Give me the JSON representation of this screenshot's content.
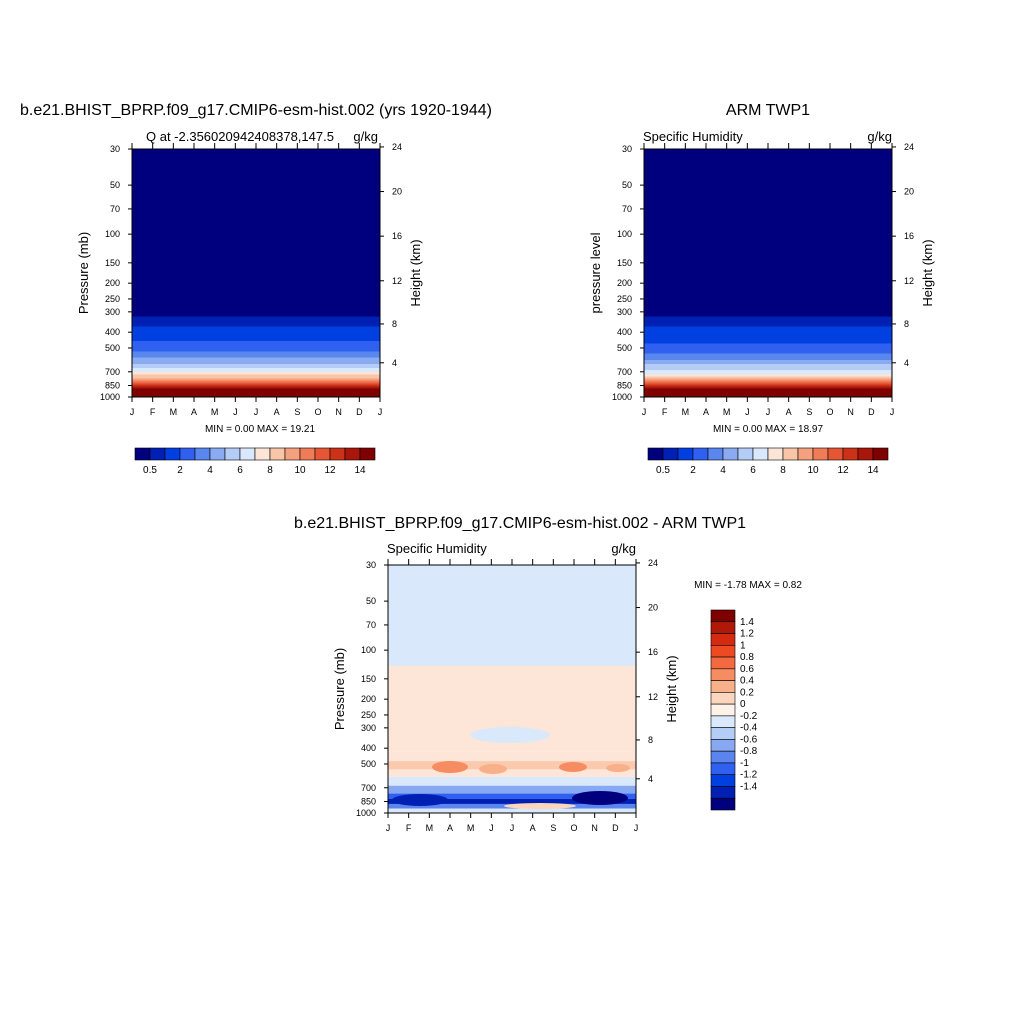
{
  "chart_data": [
    {
      "type": "heatmap",
      "title": "b.e21.BHIST_BPRP.f09_g17.CMIP6-esm-hist.002 (yrs 1920-1944)",
      "subtitle_left": "Q at -2.356020942408378,147.5",
      "subtitle_right": "g/kg",
      "ylabel": "Pressure (mb)",
      "ylabel_right": "Height (km)",
      "x_ticks": [
        "J",
        "F",
        "M",
        "A",
        "M",
        "J",
        "J",
        "A",
        "S",
        "O",
        "N",
        "D",
        "J"
      ],
      "y_ticks": [
        30,
        50,
        70,
        100,
        150,
        200,
        250,
        300,
        400,
        500,
        700,
        850,
        1000
      ],
      "y_ticks_right": [
        24,
        20,
        16,
        12,
        8,
        4
      ],
      "ylim": [
        30,
        1000
      ],
      "y_scale": "log",
      "minmax_text": "MIN =   0.00 MAX =  19.21",
      "colorbar": {
        "orientation": "horizontal",
        "labels": [
          "0.5",
          "2",
          "4",
          "6",
          "8",
          "10",
          "12",
          "14"
        ],
        "colors": [
          "#00007f",
          "#0020b4",
          "#0040e0",
          "#3060f0",
          "#5a87ee",
          "#8aaaf2",
          "#b4cdf7",
          "#d9e8fb",
          "#fbe5d6",
          "#f8c5a8",
          "#f5a07e",
          "#f07c57",
          "#e65635",
          "#cc3218",
          "#a8160c",
          "#7f0000"
        ]
      },
      "profile": [
        {
          "p": 30,
          "q": 0.0
        },
        {
          "p": 280,
          "q": 0.05
        },
        {
          "p": 300,
          "q": 0.4
        },
        {
          "p": 400,
          "q": 1.3
        },
        {
          "p": 500,
          "q": 2.6
        },
        {
          "p": 600,
          "q": 4.5
        },
        {
          "p": 700,
          "q": 7.0
        },
        {
          "p": 775,
          "q": 10.0
        },
        {
          "p": 850,
          "q": 13.0
        },
        {
          "p": 925,
          "q": 16.0
        },
        {
          "p": 1000,
          "q": 19.2
        }
      ]
    },
    {
      "type": "heatmap",
      "title": "ARM TWP1",
      "subtitle_left": "Specific Humidity",
      "subtitle_right": "g/kg",
      "ylabel": "pressure level",
      "ylabel_right": "Height (km)",
      "x_ticks": [
        "J",
        "F",
        "M",
        "A",
        "M",
        "J",
        "J",
        "A",
        "S",
        "O",
        "N",
        "D",
        "J"
      ],
      "y_ticks": [
        30,
        50,
        70,
        100,
        150,
        200,
        250,
        300,
        400,
        500,
        700,
        850,
        1000
      ],
      "y_ticks_right": [
        24,
        20,
        16,
        12,
        8,
        4
      ],
      "ylim": [
        30,
        1000
      ],
      "y_scale": "log",
      "minmax_text": "MIN =   0.00 MAX =  18.97",
      "colorbar": {
        "orientation": "horizontal",
        "labels": [
          "0.5",
          "2",
          "4",
          "6",
          "8",
          "10",
          "12",
          "14"
        ],
        "colors": [
          "#00007f",
          "#0020b4",
          "#0040e0",
          "#3060f0",
          "#5a87ee",
          "#8aaaf2",
          "#b4cdf7",
          "#d9e8fb",
          "#fbe5d6",
          "#f8c5a8",
          "#f5a07e",
          "#f07c57",
          "#e65635",
          "#cc3218",
          "#a8160c",
          "#7f0000"
        ]
      },
      "profile": [
        {
          "p": 30,
          "q": 0.0
        },
        {
          "p": 280,
          "q": 0.05
        },
        {
          "p": 300,
          "q": 0.4
        },
        {
          "p": 400,
          "q": 1.3
        },
        {
          "p": 500,
          "q": 2.5
        },
        {
          "p": 600,
          "q": 4.4
        },
        {
          "p": 700,
          "q": 6.8
        },
        {
          "p": 775,
          "q": 9.8
        },
        {
          "p": 850,
          "q": 12.8
        },
        {
          "p": 925,
          "q": 15.8
        },
        {
          "p": 1000,
          "q": 19.0
        }
      ]
    },
    {
      "type": "heatmap",
      "title": "b.e21.BHIST_BPRP.f09_g17.CMIP6-esm-hist.002 - ARM TWP1",
      "subtitle_left": "Specific Humidity",
      "subtitle_right": "g/kg",
      "ylabel": "Pressure (mb)",
      "ylabel_right": "Height (km)",
      "x_ticks": [
        "J",
        "F",
        "M",
        "A",
        "M",
        "J",
        "J",
        "A",
        "S",
        "O",
        "N",
        "D",
        "J"
      ],
      "y_ticks": [
        30,
        50,
        70,
        100,
        150,
        200,
        250,
        300,
        400,
        500,
        700,
        850,
        1000
      ],
      "y_ticks_right": [
        24,
        20,
        16,
        12,
        8,
        4
      ],
      "ylim": [
        30,
        1000
      ],
      "y_scale": "log",
      "minmax_text": "MIN =  -1.78 MAX =   0.82",
      "colorbar": {
        "orientation": "vertical",
        "labels": [
          "1.4",
          "1.2",
          "1",
          "0.8",
          "0.6",
          "0.4",
          "0.2",
          "0",
          "-0.2",
          "-0.4",
          "-0.6",
          "-0.8",
          "-1",
          "-1.2",
          "-1.4"
        ],
        "colors": [
          "#7f0000",
          "#b01808",
          "#d42a10",
          "#ee4a22",
          "#f36a40",
          "#f58c62",
          "#f8b08a",
          "#fbd6bd",
          "#fdf2e8",
          "#d9e8fb",
          "#b4cdf7",
          "#88a8f2",
          "#5a85ee",
          "#3060f0",
          "#0040e0",
          "#0020b4",
          "#00007f"
        ]
      },
      "bands": [
        {
          "p0": 30,
          "p1": 125,
          "color": "#d9e8fb"
        },
        {
          "p0": 125,
          "p1": 420,
          "color": "#fde6d8"
        },
        {
          "p0": 420,
          "p1": 480,
          "color": "#fde6d8"
        },
        {
          "p0": 480,
          "p1": 540,
          "color": "#fbc9ae"
        },
        {
          "p0": 540,
          "p1": 600,
          "color": "#fde6d8"
        },
        {
          "p0": 600,
          "p1": 680,
          "color": "#d9e8fb"
        },
        {
          "p0": 680,
          "p1": 760,
          "color": "#88a8f2"
        },
        {
          "p0": 760,
          "p1": 820,
          "color": "#3060f0"
        },
        {
          "p0": 820,
          "p1": 880,
          "color": "#0020b4"
        },
        {
          "p0": 880,
          "p1": 940,
          "color": "#5a85ee"
        },
        {
          "p0": 940,
          "p1": 1000,
          "color": "#d9e8fb"
        }
      ]
    }
  ]
}
